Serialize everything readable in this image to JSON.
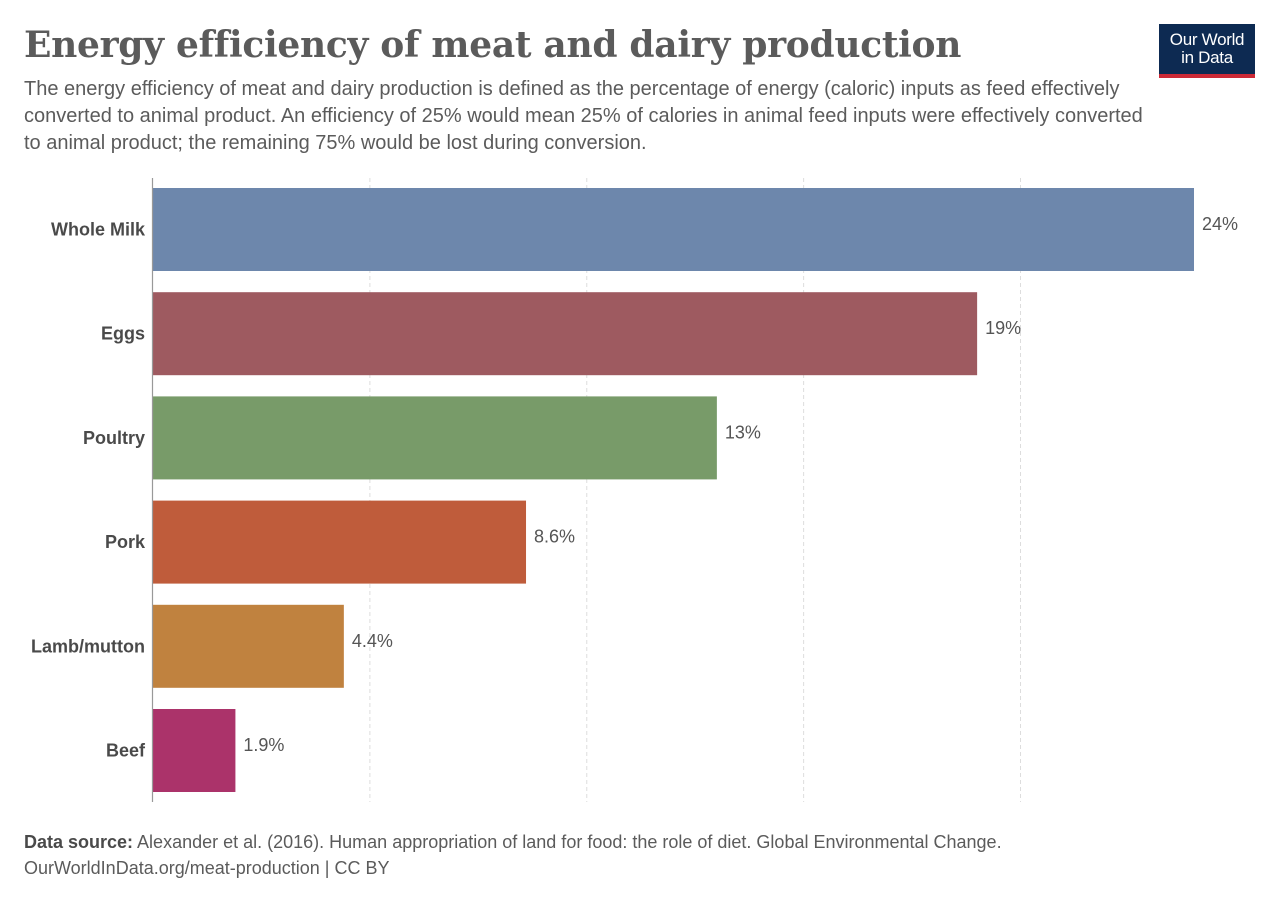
{
  "header": {
    "title": "Energy efficiency of meat and dairy production",
    "subtitle": "The energy efficiency of meat and dairy production is defined as the percentage of energy (caloric) inputs as feed effectively converted to animal product. An efficiency of 25% would mean 25% of calories in animal feed inputs were effectively converted to animal product; the remaining 75% would be lost during conversion.",
    "logo_line1": "Our World",
    "logo_line2": "in Data"
  },
  "chart_data": {
    "type": "bar",
    "orientation": "horizontal",
    "categories": [
      "Whole Milk",
      "Eggs",
      "Poultry",
      "Pork",
      "Lamb/mutton",
      "Beef"
    ],
    "values": [
      24,
      19,
      13,
      8.6,
      4.4,
      1.9
    ],
    "value_labels": [
      "24%",
      "19%",
      "13%",
      "8.6%",
      "4.4%",
      "1.9%"
    ],
    "colors": [
      "#6d87ac",
      "#9e5a60",
      "#789b69",
      "#bf5c3b",
      "#c0823f",
      "#ab336a"
    ],
    "xlim": [
      0,
      24
    ],
    "gridlines_at": [
      5,
      10,
      15,
      20
    ],
    "grid": "dashed-vertical",
    "unit": "%"
  },
  "footer": {
    "source_label": "Data source:",
    "source_text": " Alexander et al. (2016). Human appropriation of land for food: the role of diet. Global Environmental Change.",
    "url_line": "OurWorldInData.org/meat-production | CC BY"
  }
}
